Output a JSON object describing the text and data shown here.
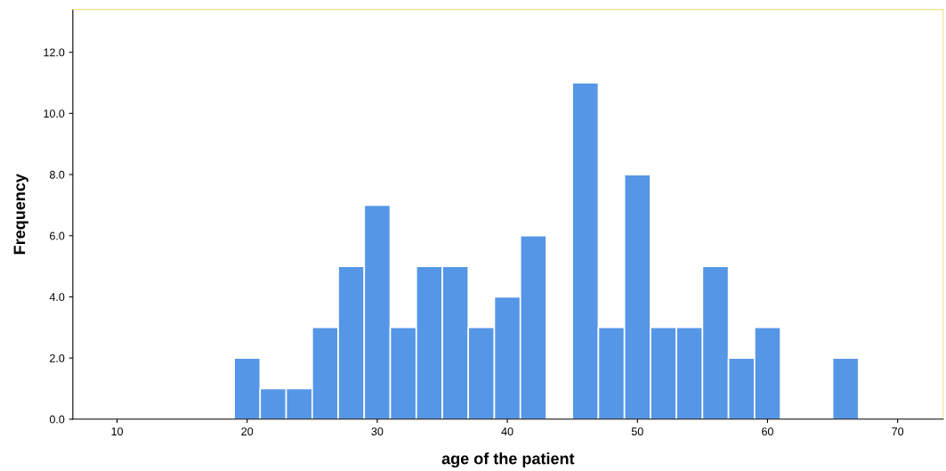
{
  "chart_data": {
    "type": "histogram",
    "xlabel": "age of the patient",
    "ylabel": "Frequency",
    "bins": [
      19,
      21,
      23,
      25,
      27,
      29,
      31,
      33,
      35,
      37,
      39,
      41,
      43,
      45,
      47,
      49,
      51,
      53,
      55,
      57,
      59,
      61,
      63,
      65,
      67
    ],
    "values": [
      2,
      1,
      1,
      3,
      5,
      7,
      3,
      5,
      5,
      3,
      4,
      6,
      0,
      11,
      3,
      8,
      3,
      3,
      5,
      2,
      3,
      0,
      0,
      2
    ],
    "color": "#5596e6",
    "xlim": [
      6.6,
      73.5
    ],
    "xticks": [
      10,
      20,
      30,
      40,
      50,
      60,
      70
    ],
    "ylim": [
      0,
      13.4
    ],
    "yticks": [
      {
        "value": 0,
        "label": "0.0"
      },
      {
        "value": 2,
        "label": "2.0"
      },
      {
        "value": 4,
        "label": "4.0"
      },
      {
        "value": 6,
        "label": "6.0"
      },
      {
        "value": 8,
        "label": "8.0"
      },
      {
        "value": 10,
        "label": "10.0"
      },
      {
        "value": 12,
        "label": "12.0"
      }
    ],
    "grid": false,
    "legend": false
  }
}
